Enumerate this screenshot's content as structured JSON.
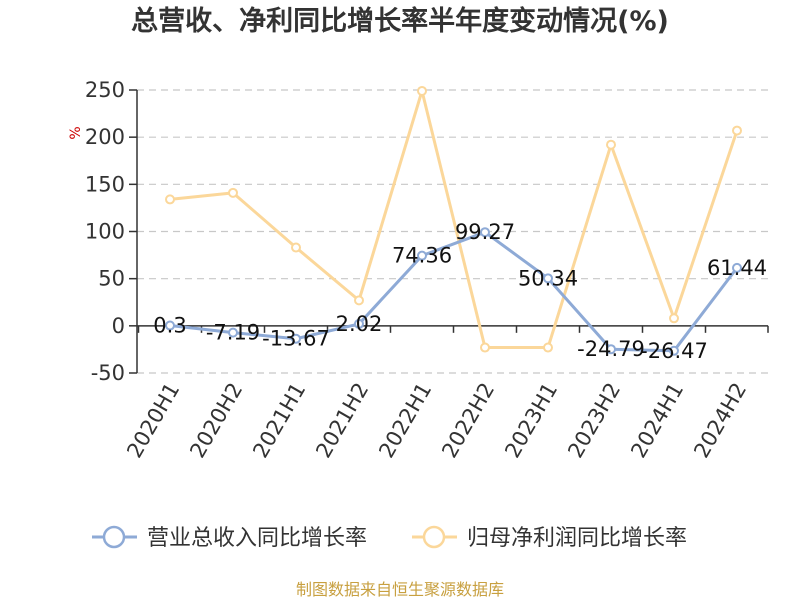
{
  "chart_data": {
    "type": "line",
    "title": "总营收、净利同比增长率半年度变动情况(%)",
    "unit": "%",
    "categories": [
      "2020H1",
      "2020H2",
      "2021H1",
      "2021H2",
      "2022H1",
      "2022H2",
      "2023H1",
      "2023H2",
      "2024H1",
      "2024H2"
    ],
    "ylim": [
      -50,
      250
    ],
    "yticks": [
      -50,
      0,
      50,
      100,
      150,
      200,
      250
    ],
    "grid": true,
    "legend_position": "bottom",
    "series": [
      {
        "name": "营业总收入同比增长率",
        "color": "#8eaad6",
        "values": [
          0.3,
          -7.19,
          -13.67,
          2.02,
          74.36,
          99.27,
          50.34,
          -24.79,
          -26.47,
          61.44
        ],
        "labels": [
          "0.3",
          "-7.19",
          "-13.67",
          "2.02",
          "74.36",
          "99.27",
          "50.34",
          "-24.79",
          "-26.47",
          "61.44"
        ]
      },
      {
        "name": "归母净利润同比增长率",
        "color": "#fbd79a",
        "values": [
          134,
          141,
          83,
          27,
          249,
          -23,
          -23,
          192,
          8,
          207
        ]
      }
    ]
  },
  "source": {
    "text": "制图数据来自恒生聚源数据库",
    "color": "#c8a040"
  }
}
